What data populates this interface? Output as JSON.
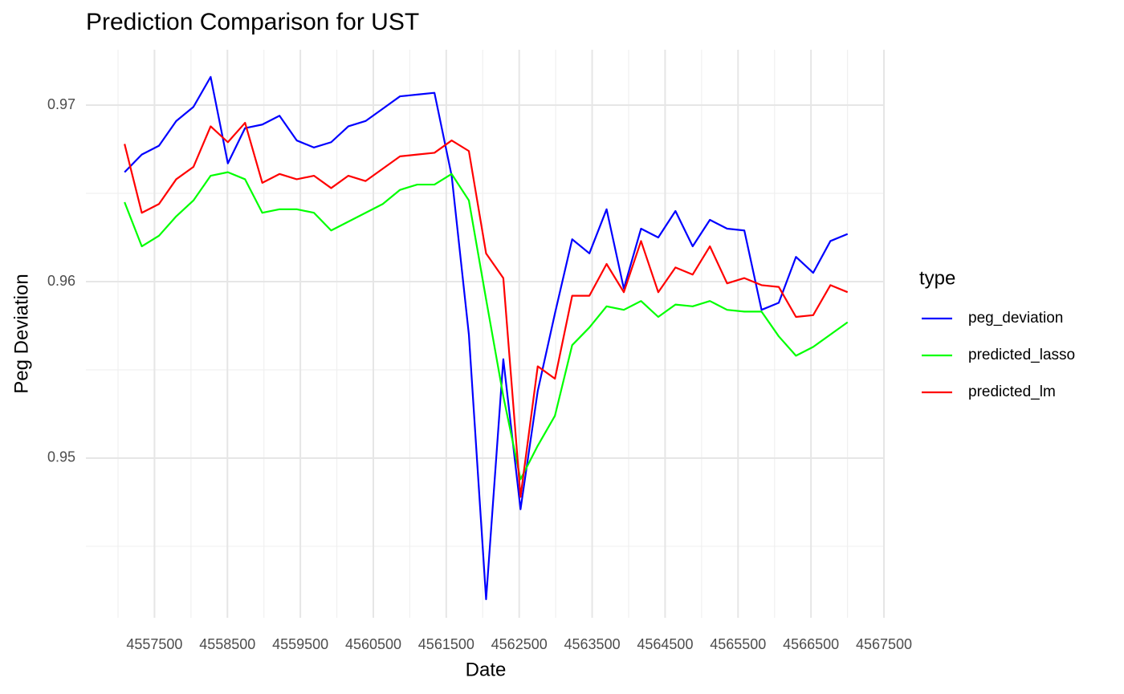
{
  "chart_data": {
    "type": "line",
    "title": "Prediction Comparison for UST",
    "x_label": "Date",
    "y_label": "Peg Deviation",
    "legend_title": "type",
    "legend_position": "right",
    "grid": true,
    "xlim": [
      4556560,
      4567500
    ],
    "ylim": [
      0.94095,
      0.97314
    ],
    "xticks": [
      4557500,
      4558500,
      4559500,
      4560500,
      4561500,
      4562500,
      4563500,
      4564500,
      4565500,
      4566500,
      4567500
    ],
    "xminor_ticks": [
      4557000,
      4558000,
      4559000,
      4560000,
      4561000,
      4562000,
      4563000,
      4564000,
      4565000,
      4566000,
      4567000
    ],
    "yticks": [
      0.95,
      0.96,
      0.97
    ],
    "yminor_ticks": [
      0.945,
      0.955,
      0.965
    ],
    "x": [
      4557090,
      4557326,
      4557562,
      4557798,
      4558034,
      4558270,
      4558506,
      4558742,
      4558978,
      4559214,
      4559450,
      4559686,
      4559922,
      4560158,
      4560394,
      4560630,
      4560866,
      4561102,
      4561338,
      4561574,
      4561810,
      4562046,
      4562282,
      4562518,
      4562754,
      4562990,
      4563226,
      4563462,
      4563698,
      4563934,
      4564170,
      4564406,
      4564642,
      4564878,
      4565114,
      4565350,
      4565586,
      4565822,
      4566058,
      4566294,
      4566530,
      4566766,
      4567002
    ],
    "series": [
      {
        "name": "peg_deviation",
        "color": "#0000ff",
        "values": [
          0.9662,
          0.9672,
          0.9677,
          0.9691,
          0.9699,
          0.9716,
          0.9667,
          0.9687,
          0.9689,
          0.9694,
          0.968,
          0.9676,
          0.9679,
          0.9688,
          0.9691,
          0.9698,
          0.9705,
          0.9706,
          0.9707,
          0.966,
          0.957,
          0.942,
          0.9556,
          0.9471,
          0.9538,
          0.9582,
          0.9624,
          0.9616,
          0.9641,
          0.9596,
          0.963,
          0.9625,
          0.964,
          0.962,
          0.9635,
          0.963,
          0.9629,
          0.9584,
          0.9588,
          0.9614,
          0.9605,
          0.9623,
          0.9627
        ]
      },
      {
        "name": "predicted_lasso",
        "color": "#00ff00",
        "values": [
          0.9645,
          0.962,
          0.9626,
          0.9637,
          0.9646,
          0.966,
          0.9662,
          0.9658,
          0.9639,
          0.9641,
          0.9641,
          0.9639,
          0.9629,
          0.9634,
          0.9639,
          0.9644,
          0.9652,
          0.9655,
          0.9655,
          0.9661,
          0.9646,
          0.959,
          0.9535,
          0.9488,
          0.9507,
          0.9524,
          0.9564,
          0.9574,
          0.9586,
          0.9584,
          0.9589,
          0.958,
          0.9587,
          0.9586,
          0.9589,
          0.9584,
          0.9583,
          0.9583,
          0.9569,
          0.9558,
          0.9563,
          0.957,
          0.9577
        ]
      },
      {
        "name": "predicted_lm",
        "color": "#ff0000",
        "values": [
          0.9678,
          0.9639,
          0.9644,
          0.9658,
          0.9665,
          0.9688,
          0.9679,
          0.969,
          0.9656,
          0.9661,
          0.9658,
          0.966,
          0.9653,
          0.966,
          0.9657,
          0.9664,
          0.9671,
          0.9672,
          0.9673,
          0.968,
          0.9674,
          0.9616,
          0.9602,
          0.9478,
          0.9552,
          0.9545,
          0.9592,
          0.9592,
          0.961,
          0.9594,
          0.9623,
          0.9594,
          0.9608,
          0.9604,
          0.962,
          0.9599,
          0.9602,
          0.9598,
          0.9597,
          0.958,
          0.9581,
          0.9598,
          0.9594
        ]
      }
    ]
  }
}
